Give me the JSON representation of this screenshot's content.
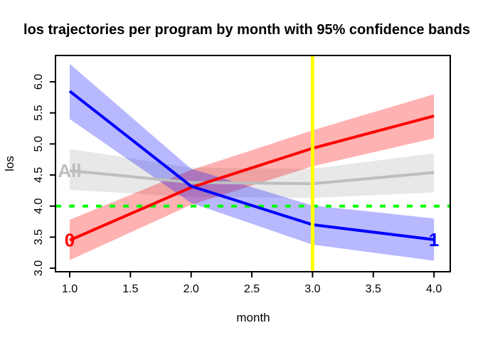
{
  "title": "los trajectories per program by month with 95% confidence bands",
  "chart_data": {
    "type": "line",
    "title": "los trajectories per program by month with 95% confidence bands",
    "xlabel": "month",
    "ylabel": "los",
    "x": [
      1,
      2,
      3,
      4
    ],
    "x_ticks": [
      1.0,
      1.5,
      2.0,
      2.5,
      3.0,
      3.5,
      4.0
    ],
    "y_ticks": [
      3.0,
      3.5,
      4.0,
      4.5,
      5.0,
      5.5,
      6.0
    ],
    "xlim": [
      0.883,
      4.134
    ],
    "ylim": [
      2.943,
      6.424
    ],
    "grid": false,
    "legend": "inline-text-labels",
    "series": [
      {
        "name": "All",
        "label": "All",
        "label_anchor": "start",
        "color": "#bebebe",
        "band_color": "rgba(190,190,190,0.35)",
        "values": [
          4.57,
          4.38,
          4.36,
          4.54
        ],
        "lower": [
          4.26,
          4.15,
          4.13,
          4.22
        ],
        "upper": [
          4.92,
          4.62,
          4.6,
          4.85
        ]
      },
      {
        "name": "0",
        "label": "0",
        "label_anchor": "start",
        "color": "#ff0000",
        "band_color": "rgba(255,0,0,0.30)",
        "values": [
          3.45,
          4.3,
          4.93,
          5.45
        ],
        "lower": [
          3.13,
          4.02,
          4.64,
          5.09
        ],
        "upper": [
          3.78,
          4.58,
          5.22,
          5.8
        ]
      },
      {
        "name": "1",
        "label": "1",
        "label_anchor": "end",
        "color": "#0000ff",
        "band_color": "rgba(0,0,255,0.28)",
        "values": [
          5.85,
          4.32,
          3.7,
          3.46
        ],
        "lower": [
          5.4,
          4.05,
          3.38,
          3.12
        ],
        "upper": [
          6.29,
          4.6,
          4.01,
          3.8
        ]
      }
    ],
    "reference_lines": [
      {
        "orientation": "horizontal",
        "value": 4.0,
        "color": "#00ff00",
        "style": "dashed",
        "width": 4
      },
      {
        "orientation": "vertical",
        "value": 3.0,
        "color": "#ffff00",
        "style": "solid",
        "width": 5
      }
    ]
  }
}
